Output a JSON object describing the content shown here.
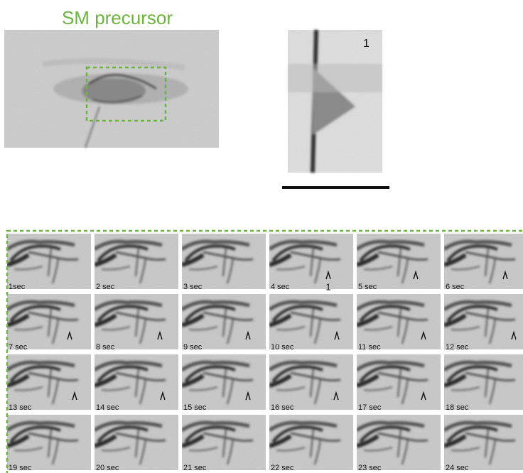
{
  "figure": {
    "title": "SM precursor",
    "kymograph_label": "1",
    "marker_label": "1",
    "frames": [
      "1sec",
      "2 sec",
      "3 sec",
      "4 sec",
      "5 sec",
      "6 sec",
      "7 sec",
      "8 sec",
      "9 sec",
      "10 sec",
      "11 sec",
      "12 sec",
      "13 sec",
      "14 sec",
      "15 sec",
      "16 sec",
      "17 sec",
      "18 sec",
      "19 sec",
      "20 sec",
      "21 sec",
      "22 sec",
      "23 sec",
      "24 sec"
    ]
  }
}
